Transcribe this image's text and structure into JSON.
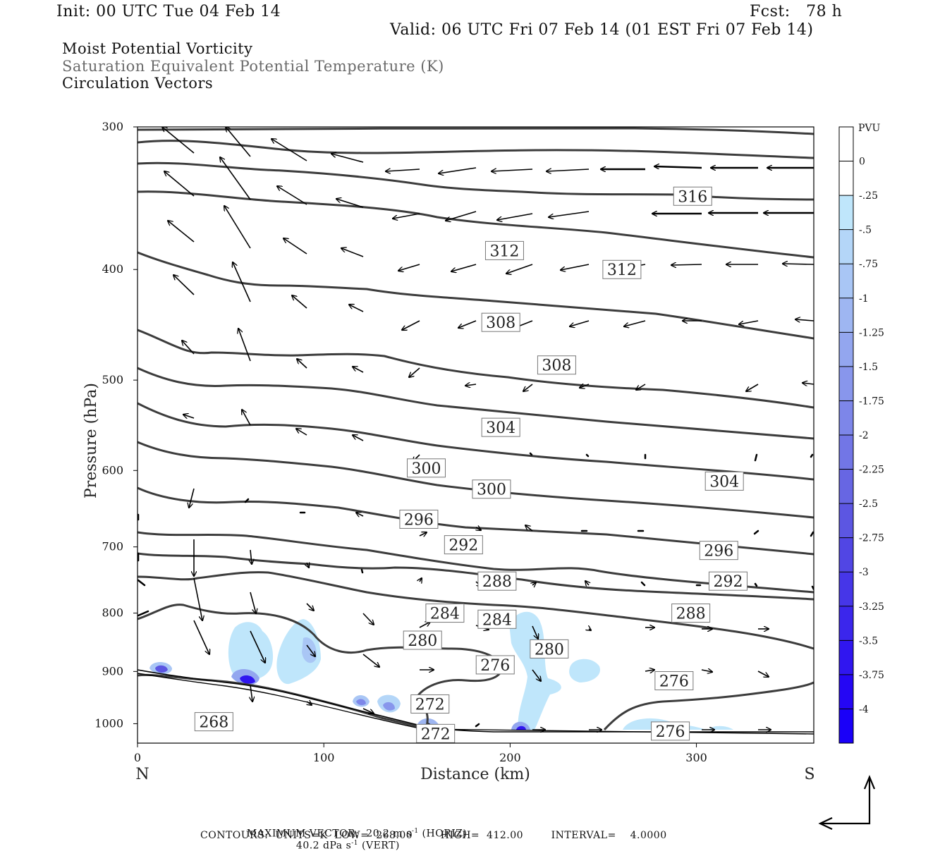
{
  "header": {
    "init": "Init: 00 UTC Tue 04 Feb 14",
    "fcst": "Fcst:   78 h",
    "valid": "Valid: 06 UTC Fri 07 Feb 14 (01 EST Fri 07 Feb 14)"
  },
  "titles": {
    "line1": "Moist Potential Vorticity",
    "line2": "Saturation Equivalent Potential Temperature (K)",
    "line3": "Circulation Vectors"
  },
  "footer": {
    "max_vector_a": "MAXIMUM VECTOR:  20.2 m s",
    "max_vector_b": " (HORIZ)",
    "max_vector_c": "40.2 dPa s",
    "max_vector_d": " (VERT)",
    "exp": "-1",
    "contours": "CONTOURS:  UNITS=K  LOW=  268.00        HIGH=  412.00        INTERVAL=    4.0000"
  },
  "chart_data": {
    "type": "cross-section (filled contour + line contour + vectors)",
    "xlabel": "Distance (km)",
    "ylabel": "Pressure (hPa)",
    "x_end_left": "N",
    "x_end_right": "S",
    "xlim": [
      0,
      363
    ],
    "ylim": [
      1040,
      300
    ],
    "y_scale": "log",
    "x_ticks": [
      0,
      100,
      200,
      300
    ],
    "y_ticks": [
      300,
      400,
      500,
      600,
      700,
      800,
      900,
      1000
    ],
    "colorbar": {
      "title": "PVU",
      "labels": [
        "0",
        "-.25",
        "-.5",
        "-.75",
        "-1",
        "-1.25",
        "-1.5",
        "-1.75",
        "-2",
        "-2.25",
        "-2.5",
        "-2.75",
        "-3",
        "-3.25",
        "-3.5",
        "-3.75",
        "-4"
      ],
      "colors": [
        "#ffffff",
        "#ffffff",
        "#bfe6fb",
        "#b4d6f8",
        "#a9c6f5",
        "#9eb6f2",
        "#93a6ef",
        "#8896ec",
        "#7d86e9",
        "#7276e6",
        "#6766e3",
        "#5c56e2",
        "#5146e4",
        "#4636e8",
        "#3b26ec",
        "#3016f0",
        "#2506f4",
        "#1a00f8"
      ]
    },
    "theta_es_contour_labels_K": [
      {
        "value": "316",
        "km": 298,
        "hPa": 345
      },
      {
        "value": "312",
        "km": 197,
        "hPa": 385
      },
      {
        "value": "312",
        "km": 260,
        "hPa": 400
      },
      {
        "value": "308",
        "km": 195,
        "hPa": 445
      },
      {
        "value": "308",
        "km": 225,
        "hPa": 485
      },
      {
        "value": "304",
        "km": 195,
        "hPa": 550
      },
      {
        "value": "304",
        "km": 315,
        "hPa": 613
      },
      {
        "value": "300",
        "km": 155,
        "hPa": 597
      },
      {
        "value": "300",
        "km": 190,
        "hPa": 623
      },
      {
        "value": "296",
        "km": 151,
        "hPa": 662
      },
      {
        "value": "296",
        "km": 312,
        "hPa": 705
      },
      {
        "value": "292",
        "km": 175,
        "hPa": 697
      },
      {
        "value": "292",
        "km": 317,
        "hPa": 750
      },
      {
        "value": "288",
        "km": 193,
        "hPa": 750
      },
      {
        "value": "288",
        "km": 297,
        "hPa": 800
      },
      {
        "value": "284",
        "km": 165,
        "hPa": 800
      },
      {
        "value": "284",
        "km": 193,
        "hPa": 810
      },
      {
        "value": "280",
        "km": 153,
        "hPa": 845
      },
      {
        "value": "280",
        "km": 221,
        "hPa": 860
      },
      {
        "value": "276",
        "km": 192,
        "hPa": 888
      },
      {
        "value": "276",
        "km": 288,
        "hPa": 917
      },
      {
        "value": "276",
        "km": 286,
        "hPa": 1015
      },
      {
        "value": "272",
        "km": 157,
        "hPa": 961
      },
      {
        "value": "272",
        "km": 160,
        "hPa": 1020
      },
      {
        "value": "268",
        "km": 41,
        "hPa": 996
      }
    ],
    "grid": false
  },
  "colors": {
    "contour": "#3c3c3c",
    "vector": "#000000",
    "mpv_light": "#bfe6fb",
    "mpv_dark": "#1a00f8"
  }
}
